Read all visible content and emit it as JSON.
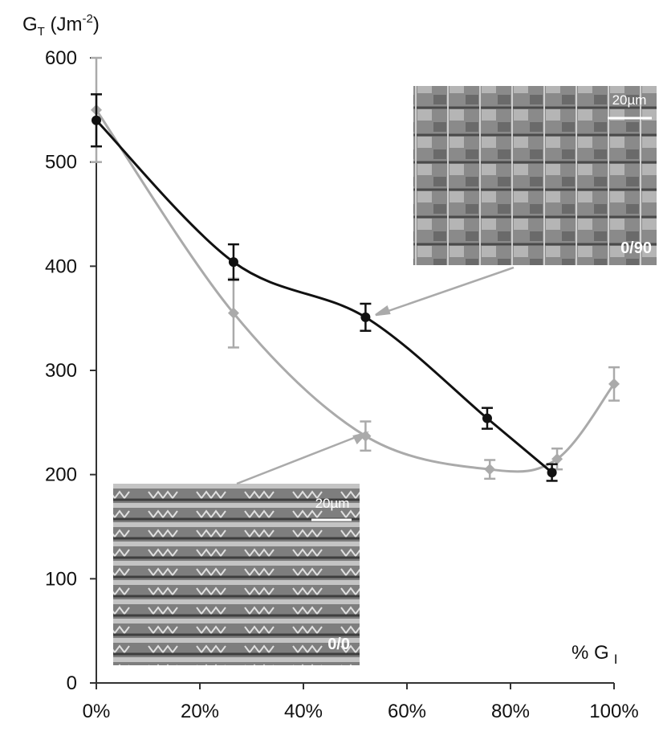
{
  "chart_data": {
    "type": "line",
    "y_label": [
      "G",
      "T",
      " (Jm",
      "-2",
      ")"
    ],
    "x_label": [
      "% G",
      "I"
    ],
    "xlim": [
      0,
      100
    ],
    "xticks": [
      {
        "value": 0,
        "label": "0%"
      },
      {
        "value": 20,
        "label": "20%"
      },
      {
        "value": 40,
        "label": "40%"
      },
      {
        "value": 60,
        "label": "60%"
      },
      {
        "value": 80,
        "label": "80%"
      },
      {
        "value": 100,
        "label": "100%"
      }
    ],
    "ylim": [
      0,
      600
    ],
    "yticks": [
      0,
      100,
      200,
      300,
      400,
      500,
      600
    ],
    "series": [
      {
        "color": "#aaaaaa",
        "x": [
          0,
          26.5,
          52,
          76,
          89,
          100
        ],
        "values": [
          550,
          355,
          237,
          205,
          215,
          287
        ],
        "errors": [
          50,
          33,
          14,
          9,
          10,
          16
        ]
      },
      {
        "color": "#111111",
        "x": [
          0,
          26.5,
          52,
          75.5,
          88
        ],
        "values": [
          540,
          404,
          351,
          254,
          202
        ],
        "errors": [
          25,
          17,
          13,
          10,
          8
        ]
      }
    ],
    "annotations": [
      "20µm",
      "0/90",
      "20µm",
      "0/0"
    ]
  }
}
